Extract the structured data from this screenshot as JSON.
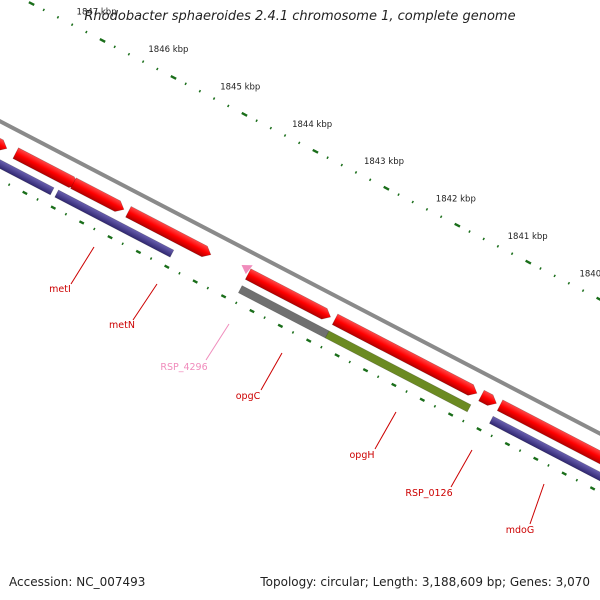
{
  "title": "Rhodobacter sphaeroides 2.4.1 chromosome 1, complete genome",
  "accession": "Accession: NC_007493",
  "topology": "Topology: circular; Length: 3,188,609 bp; Genes: 3,070",
  "scale_labels": [
    "1847 kbp",
    "1846 kbp",
    "1845 kbp",
    "1844 kbp",
    "1843 kbp",
    "1842 kbp",
    "1841 kbp",
    "1840 kbp"
  ],
  "genes": [
    {
      "name": "metI",
      "color": "#cc0000"
    },
    {
      "name": "metN",
      "color": "#cc0000"
    },
    {
      "name": "RSP_4296",
      "color": "#f08cbc"
    },
    {
      "name": "opgC",
      "color": "#cc0000"
    },
    {
      "name": "opgH",
      "color": "#cc0000"
    },
    {
      "name": "RSP_0126",
      "color": "#cc0000"
    },
    {
      "name": "mdoG",
      "color": "#cc0000"
    }
  ],
  "colors": {
    "gene_forward": "#ff0000",
    "gene_reverse_track": "#4a3f91",
    "cds_green": "#6b8a22",
    "cds_gray": "#707070",
    "backbone": "#909090",
    "tick": "#1a6e1a",
    "cyan": "#00e0e0",
    "pseudo_arrow": "#f08cbc"
  }
}
